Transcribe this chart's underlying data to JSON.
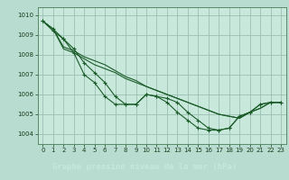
{
  "xlabel": "Graphe pression niveau de la mer (hPa)",
  "bg_color": "#b8ddd0",
  "plot_bg_color": "#c8e8dc",
  "grid_color": "#9cbfb3",
  "line_color": "#1a5c28",
  "xlabel_bg": "#2d6e3e",
  "xlabel_fg": "#c8e8dc",
  "xlim": [
    -0.5,
    23.5
  ],
  "ylim": [
    1003.5,
    1010.4
  ],
  "yticks": [
    1004,
    1005,
    1006,
    1007,
    1008,
    1009,
    1010
  ],
  "xticks": [
    0,
    1,
    2,
    3,
    4,
    5,
    6,
    7,
    8,
    9,
    10,
    11,
    12,
    13,
    14,
    15,
    16,
    17,
    18,
    19,
    20,
    21,
    22,
    23
  ],
  "series_no_marker": [
    [
      1009.7,
      1009.3,
      1008.4,
      1008.2,
      1007.9,
      1007.7,
      1007.5,
      1007.2,
      1006.9,
      1006.7,
      1006.4,
      1006.2,
      1006.0,
      1005.8,
      1005.6,
      1005.4,
      1005.2,
      1005.0,
      1004.9,
      1004.8,
      1005.1,
      1005.3,
      1005.6,
      1005.6
    ],
    [
      1009.7,
      1009.3,
      1008.3,
      1008.1,
      1007.8,
      1007.5,
      1007.3,
      1007.1,
      1006.8,
      1006.6,
      1006.4,
      1006.2,
      1006.0,
      1005.8,
      1005.6,
      1005.4,
      1005.2,
      1005.0,
      1004.9,
      1004.8,
      1005.1,
      1005.3,
      1005.6,
      1005.6
    ]
  ],
  "series_with_marker": [
    [
      1009.7,
      1009.2,
      1008.8,
      1008.3,
      1007.6,
      1007.1,
      1006.6,
      1005.9,
      1005.5,
      1005.5,
      1006.0,
      1005.9,
      1005.8,
      1005.6,
      1005.1,
      1004.7,
      1004.3,
      1004.2,
      1004.3,
      1004.9,
      1005.1,
      1005.5,
      1005.6,
      1005.6
    ],
    [
      1009.7,
      1009.3,
      1008.8,
      1008.1,
      1007.0,
      1006.6,
      1005.9,
      1005.5,
      1005.5,
      1005.5,
      1006.0,
      1005.9,
      1005.6,
      1005.1,
      1004.7,
      1004.3,
      1004.2,
      1004.2,
      1004.3,
      1004.9,
      1005.1,
      1005.5,
      1005.6,
      1005.6
    ]
  ]
}
